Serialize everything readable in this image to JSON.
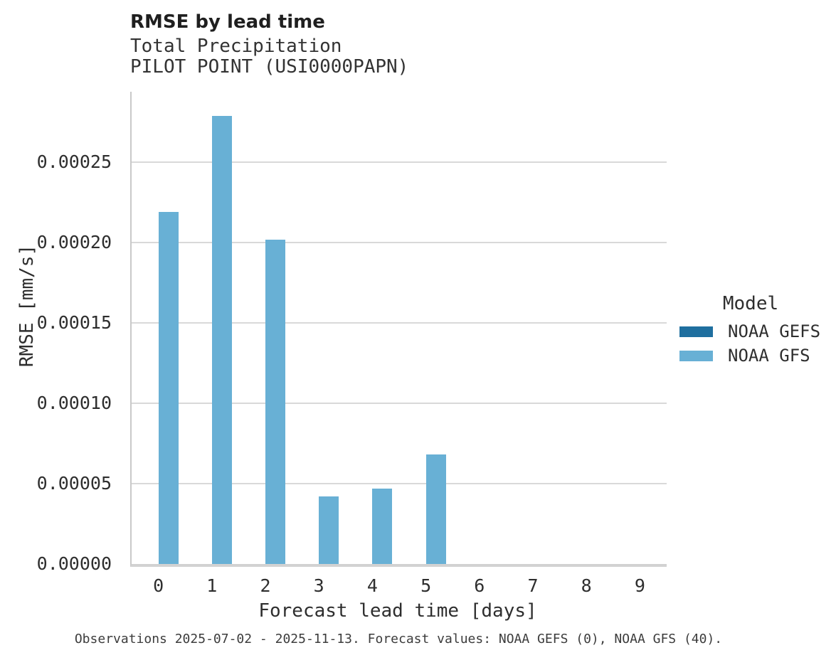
{
  "header": {
    "title": "RMSE by lead time",
    "subtitle_line1": "Total Precipitation",
    "subtitle_line2": "PILOT POINT (USI0000PAPN)"
  },
  "legend": {
    "title": "Model",
    "entries": [
      {
        "label": "NOAA GEFS",
        "color": "#1f6f9f"
      },
      {
        "label": "NOAA GFS",
        "color": "#68b0d5"
      }
    ]
  },
  "caption": "Observations 2025-07-02 - 2025-11-13. Forecast values: NOAA GEFS (0), NOAA GFS (40).",
  "chart_data": {
    "type": "bar",
    "title": "RMSE by lead time",
    "subtitle": [
      "Total Precipitation",
      "PILOT POINT (USI0000PAPN)"
    ],
    "xlabel": "Forecast lead time [days]",
    "ylabel": "RMSE [mm/s]",
    "categories": [
      "0",
      "1",
      "2",
      "3",
      "4",
      "5",
      "6",
      "7",
      "8",
      "9"
    ],
    "series": [
      {
        "name": "NOAA GEFS",
        "color": "#1f6f9f",
        "values": [
          null,
          null,
          null,
          null,
          null,
          null,
          null,
          null,
          null,
          null
        ]
      },
      {
        "name": "NOAA GFS",
        "color": "#68b0d5",
        "values": [
          0.000219,
          0.000279,
          0.000202,
          4.2e-05,
          4.7e-05,
          6.8e-05,
          0,
          0,
          0,
          0
        ]
      }
    ],
    "ylim": [
      0,
      0.000294
    ],
    "yticks": [
      0,
      5e-05,
      0.0001,
      0.00015,
      0.0002,
      0.00025
    ],
    "ytick_labels": [
      "0.00000",
      "0.00005",
      "0.00010",
      "0.00015",
      "0.00020",
      "0.00025"
    ],
    "grid": "horizontal",
    "legend_position": "right",
    "legend_title": "Model"
  }
}
